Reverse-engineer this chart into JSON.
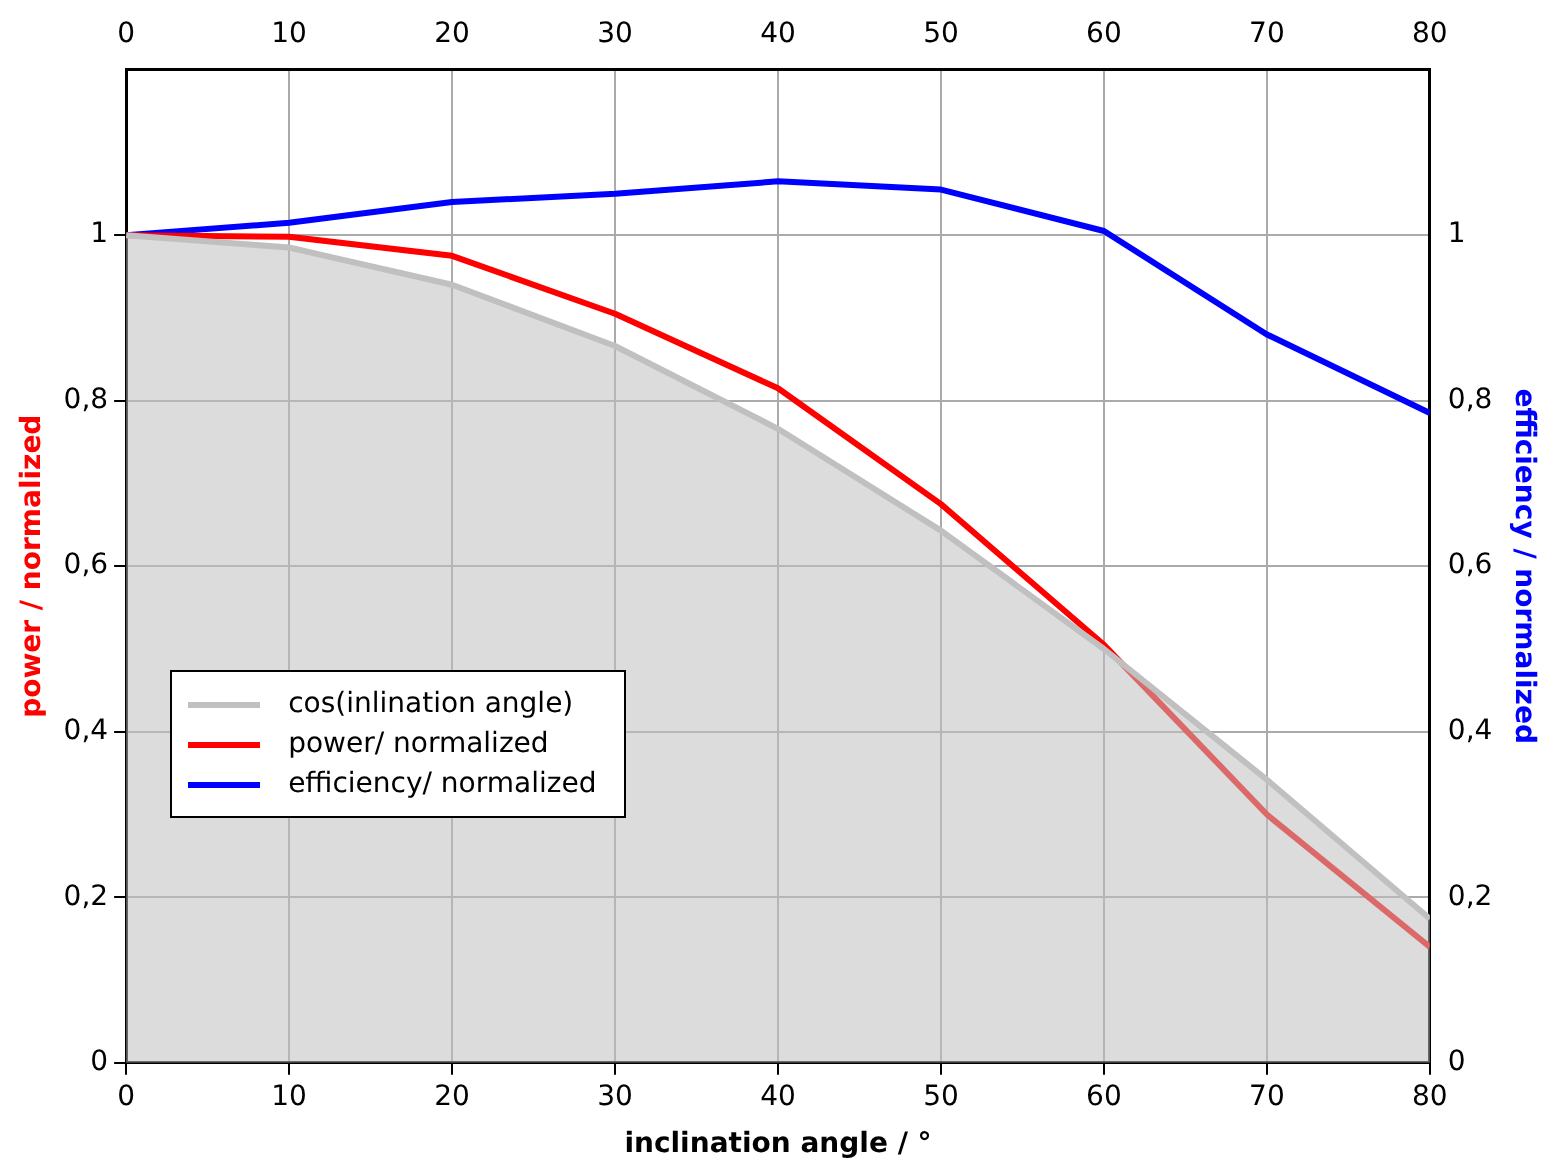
{
  "chart_data": {
    "type": "line",
    "xlabel": "inclination angle / °",
    "ylabel": "power / normalized",
    "y2label": "efficiency / normalized",
    "x": [
      0,
      10,
      20,
      30,
      40,
      50,
      60,
      70,
      80
    ],
    "series": [
      {
        "name": "cos(inlination angle)",
        "type": "area",
        "color": "#c0c0c0",
        "values": [
          1,
          0.985,
          0.94,
          0.866,
          0.766,
          0.643,
          0.5,
          0.342,
          0.174
        ]
      },
      {
        "name": "power/ normalized",
        "color": "#ff0000",
        "values": [
          1,
          0.998,
          0.975,
          0.905,
          0.815,
          0.675,
          0.505,
          0.3,
          0.14
        ]
      },
      {
        "name": "efficiency/ normalized",
        "color": "#0000ff",
        "axis": "y2",
        "values": [
          1,
          1.015,
          1.04,
          1.05,
          1.065,
          1.055,
          1.005,
          0.88,
          0.785
        ]
      }
    ],
    "xlim": [
      0,
      80
    ],
    "xticks": [
      0,
      10,
      20,
      30,
      40,
      50,
      60,
      70,
      80
    ],
    "x2lim": [
      0,
      80
    ],
    "x2ticks": [
      0,
      10,
      20,
      30,
      40,
      50,
      60,
      70,
      80
    ],
    "ylim": [
      0,
      1.2
    ],
    "yticks": [
      0,
      {
        "value": 0.2,
        "label": "0,2"
      },
      {
        "value": 0.4,
        "label": "0,4"
      },
      {
        "value": 0.6,
        "label": "0,6"
      },
      {
        "value": 0.8,
        "label": "0,8"
      },
      1
    ],
    "y2lim": [
      0,
      1.2
    ],
    "y2ticks": [
      0,
      {
        "value": 0.2,
        "label": "0,2"
      },
      {
        "value": 0.4,
        "label": "0,4"
      },
      {
        "value": 0.6,
        "label": "0,6"
      },
      {
        "value": 0.8,
        "label": "0,8"
      },
      1
    ],
    "grid": true,
    "legend": "left",
    "marker": "none",
    "line_style": "solid"
  }
}
